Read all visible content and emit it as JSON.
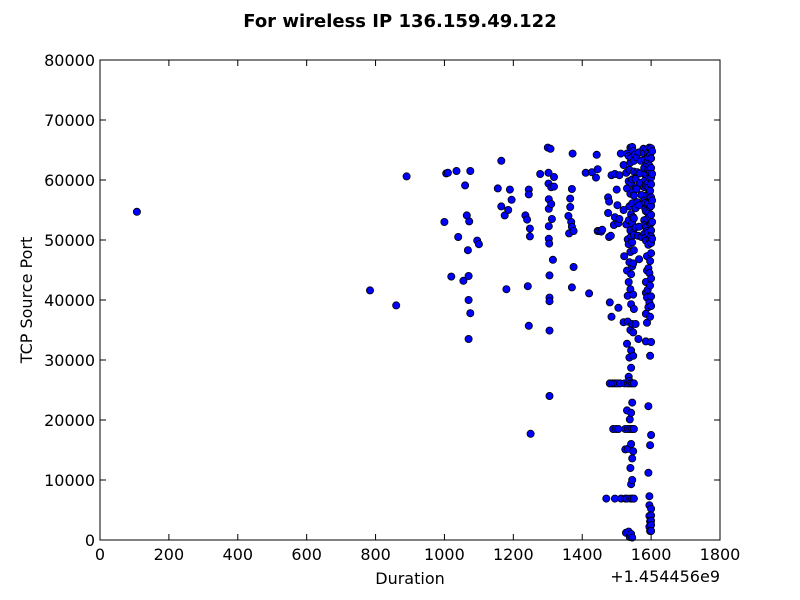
{
  "chart_data": {
    "type": "scatter",
    "title": "For wireless IP 136.159.49.122",
    "xlabel": "Duration",
    "ylabel": "TCP Source Port",
    "x_offset_label": "+1.454456e9",
    "xlim": [
      0,
      1800
    ],
    "ylim": [
      0,
      80000
    ],
    "x_ticks": [
      "0",
      "200",
      "400",
      "600",
      "800",
      "1000",
      "1200",
      "1400",
      "1600",
      "1800"
    ],
    "y_ticks": [
      "0",
      "10000",
      "20000",
      "30000",
      "40000",
      "50000",
      "60000",
      "70000",
      "80000"
    ],
    "grid": false,
    "marker_color": "#0000ff",
    "marker_edge_color": "#000000",
    "points": [
      [
        107,
        54700
      ],
      [
        784,
        41600
      ],
      [
        860,
        39100
      ],
      [
        890,
        60600
      ],
      [
        1000,
        53000
      ],
      [
        1005,
        61100
      ],
      [
        1010,
        61200
      ],
      [
        1020,
        43900
      ],
      [
        1035,
        61500
      ],
      [
        1040,
        50500
      ],
      [
        1055,
        43200
      ],
      [
        1060,
        59100
      ],
      [
        1065,
        54100
      ],
      [
        1068,
        48300
      ],
      [
        1070,
        44000
      ],
      [
        1070,
        40000
      ],
      [
        1072,
        53100
      ],
      [
        1075,
        37800
      ],
      [
        1070,
        33500
      ],
      [
        1075,
        61500
      ],
      [
        1095,
        49900
      ],
      [
        1100,
        49300
      ],
      [
        1155,
        58600
      ],
      [
        1165,
        55600
      ],
      [
        1165,
        63200
      ],
      [
        1175,
        54100
      ],
      [
        1180,
        41800
      ],
      [
        1185,
        55000
      ],
      [
        1190,
        58400
      ],
      [
        1195,
        56700
      ],
      [
        1235,
        54100
      ],
      [
        1240,
        53400
      ],
      [
        1242,
        42300
      ],
      [
        1245,
        58400
      ],
      [
        1245,
        57600
      ],
      [
        1245,
        35700
      ],
      [
        1248,
        51900
      ],
      [
        1248,
        50600
      ],
      [
        1250,
        17700
      ],
      [
        1278,
        61000
      ],
      [
        1300,
        65400
      ],
      [
        1302,
        61200
      ],
      [
        1302,
        59400
      ],
      [
        1303,
        56800
      ],
      [
        1303,
        55200
      ],
      [
        1303,
        52300
      ],
      [
        1303,
        50200
      ],
      [
        1304,
        49400
      ],
      [
        1305,
        44100
      ],
      [
        1305,
        40400
      ],
      [
        1305,
        39800
      ],
      [
        1305,
        34900
      ],
      [
        1305,
        24000
      ],
      [
        1308,
        65200
      ],
      [
        1310,
        58800
      ],
      [
        1310,
        56000
      ],
      [
        1312,
        53500
      ],
      [
        1315,
        46700
      ],
      [
        1318,
        58900
      ],
      [
        1318,
        60500
      ],
      [
        1360,
        54000
      ],
      [
        1362,
        51100
      ],
      [
        1365,
        55500
      ],
      [
        1365,
        56900
      ],
      [
        1368,
        53000
      ],
      [
        1370,
        58500
      ],
      [
        1370,
        52200
      ],
      [
        1370,
        42100
      ],
      [
        1372,
        64400
      ],
      [
        1375,
        45500
      ],
      [
        1375,
        51500
      ],
      [
        1410,
        61200
      ],
      [
        1420,
        41100
      ],
      [
        1428,
        61300
      ],
      [
        1440,
        60400
      ],
      [
        1442,
        64200
      ],
      [
        1445,
        61800
      ],
      [
        1445,
        51500
      ],
      [
        1450,
        51500
      ],
      [
        1455,
        51400
      ],
      [
        1458,
        51700
      ],
      [
        1470,
        6900
      ],
      [
        1475,
        57100
      ],
      [
        1475,
        54500
      ],
      [
        1478,
        56400
      ],
      [
        1478,
        50500
      ],
      [
        1480,
        39600
      ],
      [
        1480,
        26100
      ],
      [
        1483,
        50700
      ],
      [
        1485,
        37200
      ],
      [
        1485,
        60800
      ],
      [
        1488,
        26100
      ],
      [
        1490,
        18500
      ],
      [
        1492,
        52500
      ],
      [
        1495,
        61000
      ],
      [
        1495,
        53800
      ],
      [
        1495,
        26100
      ],
      [
        1495,
        6900
      ],
      [
        1498,
        18500
      ],
      [
        1500,
        58400
      ],
      [
        1502,
        55800
      ],
      [
        1502,
        26100
      ],
      [
        1505,
        52800
      ],
      [
        1505,
        38700
      ],
      [
        1505,
        18500
      ],
      [
        1508,
        60800
      ],
      [
        1508,
        53500
      ],
      [
        1510,
        26100
      ],
      [
        1512,
        64400
      ],
      [
        1513,
        6900
      ],
      [
        1520,
        62500
      ],
      [
        1520,
        55000
      ],
      [
        1520,
        36300
      ],
      [
        1522,
        47300
      ],
      [
        1523,
        26100
      ],
      [
        1525,
        18500
      ],
      [
        1525,
        15100
      ],
      [
        1525,
        6900
      ],
      [
        1527,
        1200
      ],
      [
        1528,
        61200
      ],
      [
        1528,
        52600
      ],
      [
        1530,
        64400
      ],
      [
        1530,
        58600
      ],
      [
        1530,
        44900
      ],
      [
        1530,
        32700
      ],
      [
        1530,
        21600
      ],
      [
        1530,
        6900
      ],
      [
        1532,
        50100
      ],
      [
        1532,
        40700
      ],
      [
        1532,
        36400
      ],
      [
        1533,
        26100
      ],
      [
        1533,
        18500
      ],
      [
        1533,
        15200
      ],
      [
        1535,
        64000
      ],
      [
        1535,
        59800
      ],
      [
        1535,
        53300
      ],
      [
        1535,
        49300
      ],
      [
        1535,
        43000
      ],
      [
        1535,
        27200
      ],
      [
        1535,
        1400
      ],
      [
        1537,
        61700
      ],
      [
        1537,
        55600
      ],
      [
        1537,
        46300
      ],
      [
        1537,
        30400
      ],
      [
        1537,
        26500
      ],
      [
        1538,
        20100
      ],
      [
        1538,
        500
      ],
      [
        1540,
        65400
      ],
      [
        1540,
        62900
      ],
      [
        1540,
        57700
      ],
      [
        1540,
        51600
      ],
      [
        1540,
        48000
      ],
      [
        1540,
        41800
      ],
      [
        1540,
        35000
      ],
      [
        1540,
        26100
      ],
      [
        1540,
        18500
      ],
      [
        1540,
        12000
      ],
      [
        1540,
        6900
      ],
      [
        1542,
        63700
      ],
      [
        1542,
        59500
      ],
      [
        1542,
        54300
      ],
      [
        1542,
        50600
      ],
      [
        1542,
        44300
      ],
      [
        1542,
        39300
      ],
      [
        1542,
        31600
      ],
      [
        1542,
        28700
      ],
      [
        1542,
        21200
      ],
      [
        1542,
        16000
      ],
      [
        1542,
        9300
      ],
      [
        1542,
        1000
      ],
      [
        1545,
        65500
      ],
      [
        1545,
        60100
      ],
      [
        1545,
        56100
      ],
      [
        1545,
        52800
      ],
      [
        1545,
        49600
      ],
      [
        1545,
        45600
      ],
      [
        1545,
        36000
      ],
      [
        1545,
        26100
      ],
      [
        1545,
        22900
      ],
      [
        1545,
        18500
      ],
      [
        1545,
        13600
      ],
      [
        1545,
        10000
      ],
      [
        1545,
        6900
      ],
      [
        1545,
        400
      ],
      [
        1548,
        64800
      ],
      [
        1548,
        58200
      ],
      [
        1548,
        53800
      ],
      [
        1548,
        51200
      ],
      [
        1548,
        46100
      ],
      [
        1548,
        40900
      ],
      [
        1548,
        34600
      ],
      [
        1548,
        30700
      ],
      [
        1548,
        14800
      ],
      [
        1550,
        63200
      ],
      [
        1550,
        61400
      ],
      [
        1550,
        57400
      ],
      [
        1550,
        53600
      ],
      [
        1550,
        50800
      ],
      [
        1550,
        48300
      ],
      [
        1550,
        38500
      ],
      [
        1550,
        26100
      ],
      [
        1550,
        18500
      ],
      [
        1550,
        6900
      ],
      [
        1553,
        64200
      ],
      [
        1555,
        60200
      ],
      [
        1555,
        58800
      ],
      [
        1555,
        55300
      ],
      [
        1555,
        52100
      ],
      [
        1555,
        36000
      ],
      [
        1558,
        63800
      ],
      [
        1558,
        58500
      ],
      [
        1560,
        61300
      ],
      [
        1560,
        56300
      ],
      [
        1562,
        50700
      ],
      [
        1563,
        33500
      ],
      [
        1565,
        64600
      ],
      [
        1565,
        55800
      ],
      [
        1565,
        52200
      ],
      [
        1565,
        46800
      ],
      [
        1567,
        61100
      ],
      [
        1568,
        59500
      ],
      [
        1570,
        63200
      ],
      [
        1572,
        57500
      ],
      [
        1572,
        50500
      ],
      [
        1578,
        65200
      ],
      [
        1580,
        64400
      ],
      [
        1580,
        62000
      ],
      [
        1580,
        58800
      ],
      [
        1580,
        56600
      ],
      [
        1580,
        53300
      ],
      [
        1580,
        51000
      ],
      [
        1582,
        63400
      ],
      [
        1582,
        61000
      ],
      [
        1583,
        60000
      ],
      [
        1583,
        56200
      ],
      [
        1583,
        55200
      ],
      [
        1583,
        52600
      ],
      [
        1583,
        50400
      ],
      [
        1585,
        59100
      ],
      [
        1585,
        54800
      ],
      [
        1585,
        52100
      ],
      [
        1585,
        49900
      ],
      [
        1585,
        43000
      ],
      [
        1585,
        41200
      ],
      [
        1585,
        37700
      ],
      [
        1585,
        33100
      ],
      [
        1587,
        65100
      ],
      [
        1587,
        62700
      ],
      [
        1587,
        60900
      ],
      [
        1588,
        57500
      ],
      [
        1588,
        53500
      ],
      [
        1588,
        51500
      ],
      [
        1588,
        47300
      ],
      [
        1588,
        44900
      ],
      [
        1588,
        40400
      ],
      [
        1588,
        36200
      ],
      [
        1590,
        64400
      ],
      [
        1590,
        63100
      ],
      [
        1590,
        59500
      ],
      [
        1590,
        56000
      ],
      [
        1590,
        51200
      ],
      [
        1590,
        41700
      ],
      [
        1592,
        63800
      ],
      [
        1592,
        61700
      ],
      [
        1592,
        58700
      ],
      [
        1592,
        54500
      ],
      [
        1592,
        49200
      ],
      [
        1592,
        45300
      ],
      [
        1592,
        38800
      ],
      [
        1592,
        11200
      ],
      [
        1592,
        22300
      ],
      [
        1595,
        65400
      ],
      [
        1595,
        62400
      ],
      [
        1595,
        60400
      ],
      [
        1595,
        57600
      ],
      [
        1595,
        53900
      ],
      [
        1595,
        50200
      ],
      [
        1595,
        44500
      ],
      [
        1595,
        39600
      ],
      [
        1595,
        7300
      ],
      [
        1595,
        5800
      ],
      [
        1595,
        4000
      ],
      [
        1595,
        2200
      ],
      [
        1597,
        64200
      ],
      [
        1597,
        61400
      ],
      [
        1597,
        58200
      ],
      [
        1597,
        55500
      ],
      [
        1597,
        52700
      ],
      [
        1597,
        46500
      ],
      [
        1597,
        42400
      ],
      [
        1597,
        37200
      ],
      [
        1597,
        30700
      ],
      [
        1597,
        15800
      ],
      [
        1597,
        3100
      ],
      [
        1597,
        1500
      ],
      [
        1600,
        65300
      ],
      [
        1600,
        63600
      ],
      [
        1600,
        62000
      ],
      [
        1600,
        60400
      ],
      [
        1600,
        59300
      ],
      [
        1600,
        57100
      ],
      [
        1600,
        55700
      ],
      [
        1600,
        54200
      ],
      [
        1600,
        52800
      ],
      [
        1600,
        51600
      ],
      [
        1600,
        50600
      ],
      [
        1600,
        49500
      ],
      [
        1600,
        47800
      ],
      [
        1600,
        43600
      ],
      [
        1600,
        40600
      ],
      [
        1600,
        39000
      ],
      [
        1600,
        33000
      ],
      [
        1600,
        17500
      ],
      [
        1600,
        5200
      ],
      [
        1600,
        4100
      ],
      [
        1600,
        3200
      ],
      [
        1600,
        2500
      ],
      [
        1600,
        1500
      ],
      [
        1603,
        64800
      ],
      [
        1603,
        61000
      ],
      [
        1603,
        56600
      ],
      [
        1603,
        53000
      ],
      [
        1603,
        50200
      ]
    ]
  }
}
